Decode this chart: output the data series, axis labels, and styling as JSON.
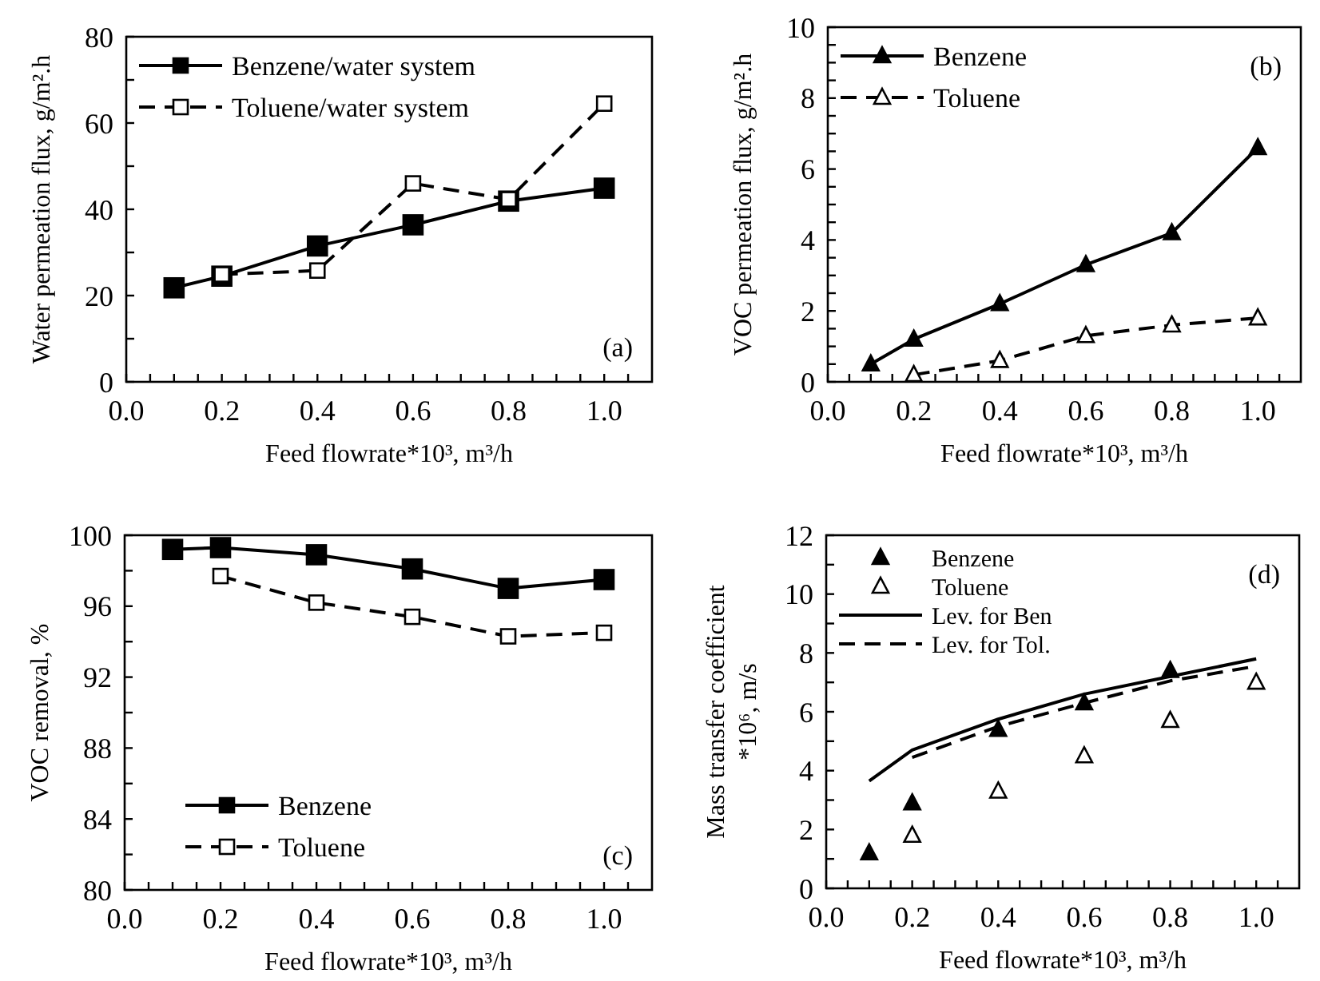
{
  "chart_data": [
    {
      "type": "line",
      "xlabel": "Feed flowrate*10³, m³/h",
      "ylabel": "Water permeation flux, g/m².h",
      "annotations": [
        "(a)"
      ],
      "xlim": [
        0,
        1.1
      ],
      "xticks": [
        {
          "value": 0,
          "label": "0.0"
        },
        {
          "value": 0.05,
          "label": null
        },
        {
          "value": 0.1,
          "label": null
        },
        {
          "value": 0.15,
          "label": null
        },
        0.2,
        {
          "value": 0.25,
          "label": null
        },
        {
          "value": 0.3,
          "label": null
        },
        {
          "value": 0.35,
          "label": null
        },
        0.4,
        {
          "value": 0.45,
          "label": null
        },
        {
          "value": 0.5,
          "label": null
        },
        {
          "value": 0.55,
          "label": null
        },
        0.6,
        {
          "value": 0.65,
          "label": null
        },
        {
          "value": 0.7,
          "label": null
        },
        {
          "value": 0.75,
          "label": null
        },
        0.8,
        {
          "value": 0.85,
          "label": null
        },
        {
          "value": 0.9,
          "label": null
        },
        {
          "value": 0.95,
          "label": null
        },
        {
          "value": 1,
          "label": "1.0"
        },
        {
          "value": 1.05,
          "label": null
        }
      ],
      "ylim": [
        0,
        80
      ],
      "yticks": [
        0,
        {
          "value": 10,
          "label": null
        },
        20,
        {
          "value": 30,
          "label": null
        },
        40,
        {
          "value": 50,
          "label": null
        },
        60,
        {
          "value": 70,
          "label": null
        },
        80
      ],
      "legend": "top left",
      "series": [
        {
          "name": "Benzene/water system",
          "color": "#000000",
          "marker": "square",
          "line_style": "solid",
          "x": [
            0.1,
            0.2,
            0.4,
            0.6,
            0.8,
            1.0
          ],
          "values": [
            21.8,
            24.5,
            31.5,
            36.4,
            41.9,
            44.9
          ]
        },
        {
          "name": "Toluene/water system",
          "color": "#000000",
          "marker": "square",
          "line_style": "dashed",
          "x": [
            0.2,
            0.4,
            0.6,
            0.8,
            1.0
          ],
          "values": [
            24.9,
            25.8,
            46,
            42.3,
            64.5
          ]
        }
      ]
    },
    {
      "type": "line",
      "xlabel": "Feed flowrate*10³, m³/h",
      "ylabel": "VOC permeation flux, g/m².h",
      "annotations": [
        "(b)"
      ],
      "xlim": [
        0,
        1.1
      ],
      "xticks": [
        {
          "value": 0,
          "label": "0.0"
        },
        {
          "value": 0.05,
          "label": null
        },
        {
          "value": 0.1,
          "label": null
        },
        {
          "value": 0.15,
          "label": null
        },
        0.2,
        {
          "value": 0.25,
          "label": null
        },
        {
          "value": 0.3,
          "label": null
        },
        {
          "value": 0.35,
          "label": null
        },
        0.4,
        {
          "value": 0.45,
          "label": null
        },
        {
          "value": 0.5,
          "label": null
        },
        {
          "value": 0.55,
          "label": null
        },
        0.6,
        {
          "value": 0.65,
          "label": null
        },
        {
          "value": 0.7,
          "label": null
        },
        {
          "value": 0.75,
          "label": null
        },
        0.8,
        {
          "value": 0.85,
          "label": null
        },
        {
          "value": 0.9,
          "label": null
        },
        {
          "value": 0.95,
          "label": null
        },
        {
          "value": 1,
          "label": "1.0"
        },
        {
          "value": 1.05,
          "label": null
        }
      ],
      "ylim": [
        0,
        10
      ],
      "yticks": [
        0,
        {
          "value": 0.5,
          "label": null
        },
        {
          "value": 1,
          "label": null
        },
        {
          "value": 1.5,
          "label": null
        },
        2,
        {
          "value": 2.5,
          "label": null
        },
        {
          "value": 3,
          "label": null
        },
        {
          "value": 3.5,
          "label": null
        },
        4,
        {
          "value": 4.5,
          "label": null
        },
        {
          "value": 5,
          "label": null
        },
        {
          "value": 5.5,
          "label": null
        },
        6,
        {
          "value": 6.5,
          "label": null
        },
        {
          "value": 7,
          "label": null
        },
        {
          "value": 7.5,
          "label": null
        },
        8,
        {
          "value": 8.5,
          "label": null
        },
        {
          "value": 9,
          "label": null
        },
        {
          "value": 9.5,
          "label": null
        },
        10
      ],
      "legend": "top left",
      "series": [
        {
          "name": "Benzene",
          "color": "#000000",
          "marker": "triangle",
          "line_style": "solid",
          "x": [
            0.1,
            0.2,
            0.4,
            0.6,
            0.8,
            1.0
          ],
          "values": [
            0.5,
            1.2,
            2.2,
            3.3,
            4.2,
            6.6
          ]
        },
        {
          "name": "Toluene",
          "color": "#000000",
          "marker": "triangle",
          "line_style": "dashed",
          "x": [
            0.2,
            0.4,
            0.6,
            0.8,
            1.0
          ],
          "values": [
            0.2,
            0.6,
            1.3,
            1.6,
            1.8
          ]
        }
      ]
    },
    {
      "type": "line",
      "xlabel": "Feed flowrate*10³, m³/h",
      "ylabel": "VOC removal, %",
      "annotations": [
        "(c)"
      ],
      "xlim": [
        0,
        1.1
      ],
      "xticks": [
        {
          "value": 0,
          "label": "0.0"
        },
        {
          "value": 0.05,
          "label": null
        },
        {
          "value": 0.1,
          "label": null
        },
        {
          "value": 0.15,
          "label": null
        },
        0.2,
        {
          "value": 0.25,
          "label": null
        },
        {
          "value": 0.3,
          "label": null
        },
        {
          "value": 0.35,
          "label": null
        },
        0.4,
        {
          "value": 0.45,
          "label": null
        },
        {
          "value": 0.5,
          "label": null
        },
        {
          "value": 0.55,
          "label": null
        },
        0.6,
        {
          "value": 0.65,
          "label": null
        },
        {
          "value": 0.7,
          "label": null
        },
        {
          "value": 0.75,
          "label": null
        },
        0.8,
        {
          "value": 0.85,
          "label": null
        },
        {
          "value": 0.9,
          "label": null
        },
        {
          "value": 0.95,
          "label": null
        },
        {
          "value": 1,
          "label": "1.0"
        },
        {
          "value": 1.05,
          "label": null
        }
      ],
      "ylim": [
        80,
        100
      ],
      "yticks": [
        80,
        {
          "value": 82,
          "label": null
        },
        84,
        {
          "value": 86,
          "label": null
        },
        88,
        {
          "value": 90,
          "label": null
        },
        92,
        {
          "value": 94,
          "label": null
        },
        96,
        {
          "value": 98,
          "label": null
        },
        100
      ],
      "legend": "bottom left",
      "series": [
        {
          "name": "Benzene",
          "color": "#000000",
          "marker": "square",
          "line_style": "solid",
          "x": [
            0.1,
            0.2,
            0.4,
            0.6,
            0.8,
            1.0
          ],
          "values": [
            99.2,
            99.3,
            98.9,
            98.1,
            97.0,
            97.5
          ]
        },
        {
          "name": "Toluene",
          "color": "#000000",
          "marker": "square",
          "line_style": "dashed",
          "x": [
            0.2,
            0.4,
            0.6,
            0.8,
            1.0
          ],
          "values": [
            97.7,
            96.2,
            95.4,
            94.3,
            94.5
          ]
        }
      ]
    },
    {
      "type": "scatter",
      "xlabel": "Feed flowrate*10³, m³/h",
      "ylabel": "Mass transfer coefficient\n*10⁶, m/s",
      "annotations": [
        "(d)"
      ],
      "xlim": [
        0,
        1.1
      ],
      "xticks": [
        {
          "value": 0,
          "label": "0.0"
        },
        {
          "value": 0.05,
          "label": null
        },
        {
          "value": 0.1,
          "label": null
        },
        {
          "value": 0.15,
          "label": null
        },
        0.2,
        {
          "value": 0.25,
          "label": null
        },
        {
          "value": 0.3,
          "label": null
        },
        {
          "value": 0.35,
          "label": null
        },
        0.4,
        {
          "value": 0.45,
          "label": null
        },
        {
          "value": 0.5,
          "label": null
        },
        {
          "value": 0.55,
          "label": null
        },
        0.6,
        {
          "value": 0.65,
          "label": null
        },
        {
          "value": 0.7,
          "label": null
        },
        {
          "value": 0.75,
          "label": null
        },
        0.8,
        {
          "value": 0.85,
          "label": null
        },
        {
          "value": 0.9,
          "label": null
        },
        {
          "value": 0.95,
          "label": null
        },
        {
          "value": 1,
          "label": "1.0"
        },
        {
          "value": 1.05,
          "label": null
        }
      ],
      "ylim": [
        0,
        12
      ],
      "yticks": [
        0,
        {
          "value": 1,
          "label": null
        },
        2,
        {
          "value": 3,
          "label": null
        },
        4,
        {
          "value": 5,
          "label": null
        },
        6,
        {
          "value": 7,
          "label": null
        },
        8,
        {
          "value": 9,
          "label": null
        },
        10,
        {
          "value": 11,
          "label": null
        },
        12
      ],
      "legend": "top left",
      "series": [
        {
          "name": "Benzene",
          "color": "#000000",
          "marker": "triangle",
          "x": [
            0.1,
            0.2,
            0.4,
            0.6,
            0.8
          ],
          "values": [
            1.2,
            2.9,
            5.4,
            6.3,
            7.4
          ]
        },
        {
          "name": "Toluene",
          "color": "#000000",
          "marker": "triangle",
          "x": [
            0.2,
            0.4,
            0.6,
            0.8,
            1.0
          ],
          "values": [
            1.8,
            3.3,
            4.5,
            5.7,
            7.0
          ]
        },
        {
          "name": "Lev. for Ben",
          "type": "line",
          "color": "#000000",
          "marker": "none",
          "line_style": "solid",
          "x": [
            0.1,
            0.2,
            0.4,
            0.6,
            0.8,
            1.0
          ],
          "values": [
            3.65,
            4.7,
            5.75,
            6.6,
            7.2,
            7.8
          ]
        },
        {
          "name": "Lev. for Tol.",
          "type": "line",
          "color": "#000000",
          "marker": "none",
          "line_style": "dashed",
          "x": [
            0.2,
            0.4,
            0.6,
            0.8,
            1.0
          ],
          "values": [
            4.45,
            5.5,
            6.3,
            7.05,
            7.55
          ]
        }
      ]
    }
  ]
}
